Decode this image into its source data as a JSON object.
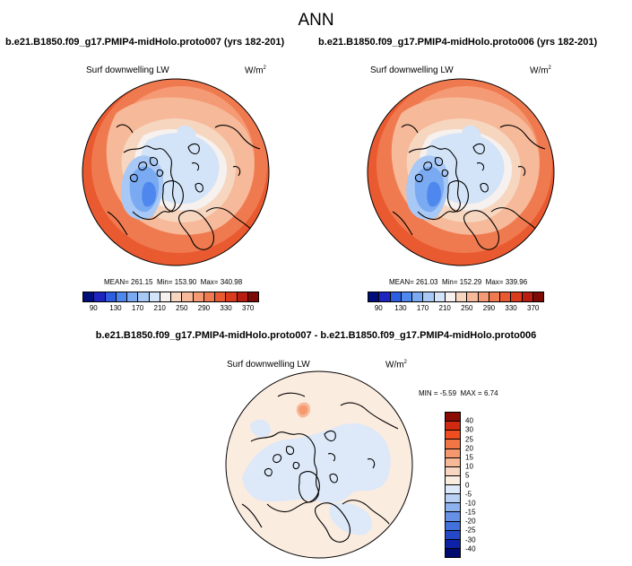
{
  "title": "ANN",
  "panels": [
    {
      "case": "b.e21.B1850.f09_g17.PMIP4-midHolo.proto007 (yrs 182-201)",
      "variable": "Surf downwelling LW",
      "units_base": "W/m",
      "units_exp": "2",
      "mean_label": "MEAN=",
      "mean": "261.15",
      "min_label": "Min=",
      "min": "153.90",
      "max_label": "Max=",
      "max": "340.98"
    },
    {
      "case": "b.e21.B1850.f09_g17.PMIP4-midHolo.proto006 (yrs 182-201)",
      "variable": "Surf downwelling LW",
      "units_base": "W/m",
      "units_exp": "2",
      "mean_label": "MEAN=",
      "mean": "261.03",
      "min_label": "Min=",
      "min": "152.29",
      "max_label": "Max=",
      "max": "339.96"
    }
  ],
  "colorbar_top": {
    "colors": [
      "#000e7a",
      "#1e24c0",
      "#2e5ee0",
      "#4e88ee",
      "#7aaaf2",
      "#a8c8f5",
      "#d3e3f8",
      "#f6f1ee",
      "#f7d6c0",
      "#f6b999",
      "#f49a74",
      "#f07a50",
      "#ea5a30",
      "#d93b1c",
      "#b81e10",
      "#7e0a06"
    ],
    "ticks": [
      "90",
      "130",
      "170",
      "210",
      "250",
      "290",
      "330",
      "370"
    ]
  },
  "diff": {
    "title": "b.e21.B1850.f09_g17.PMIP4-midHolo.proto007 - b.e21.B1850.f09_g17.PMIP4-midHolo.proto006",
    "variable": "Surf downwelling LW",
    "units_base": "W/m",
    "units_exp": "2",
    "min_label": "MIN =",
    "min": "-5.59",
    "max_label": "MAX =",
    "max": "6.74"
  },
  "colorbar_diff": {
    "colors": [
      "#8a0a04",
      "#d22a10",
      "#ee4e20",
      "#f27546",
      "#f5986e",
      "#f7b898",
      "#f8d6c2",
      "#fbece0",
      "#dde8f8",
      "#b8d0f4",
      "#8eb2ee",
      "#6690e6",
      "#4270dc",
      "#2448c8",
      "#0e22a8",
      "#000a6e"
    ],
    "ticks": [
      "40",
      "30",
      "25",
      "20",
      "15",
      "10",
      "5",
      "0",
      "-5",
      "-10",
      "-15",
      "-20",
      "-25",
      "-30",
      "-40"
    ]
  }
}
